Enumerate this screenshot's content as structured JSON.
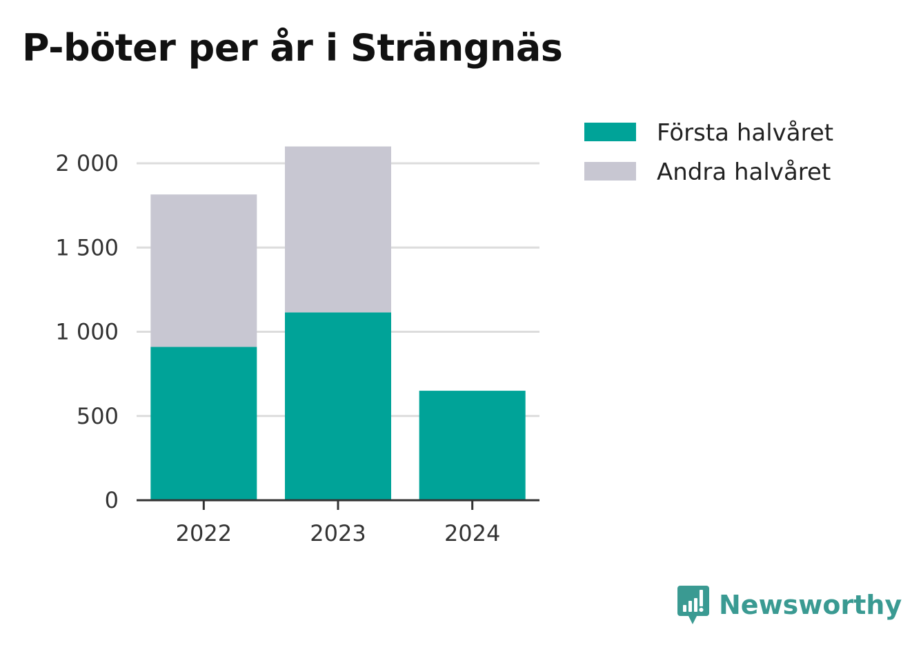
{
  "chart_data": {
    "type": "bar",
    "stacked": true,
    "title": "P-böter per år i Strängnäs",
    "categories": [
      "2022",
      "2023",
      "2024"
    ],
    "series": [
      {
        "name": "Första halvåret",
        "color": "#00a398",
        "values": [
          910,
          1115,
          650
        ]
      },
      {
        "name": "Andra halvåret",
        "color": "#c8c7d2",
        "values": [
          905,
          985,
          0
        ]
      }
    ],
    "ylim": [
      0,
      2000
    ],
    "yticks": [
      0,
      500,
      1000,
      1500,
      2000
    ],
    "ytick_labels": [
      "0",
      "500",
      "1 000",
      "1 500",
      "2 000"
    ],
    "grid": true,
    "legend": "top-right"
  },
  "brand": {
    "name": "Newsworthy",
    "color": "#3a9a92"
  }
}
